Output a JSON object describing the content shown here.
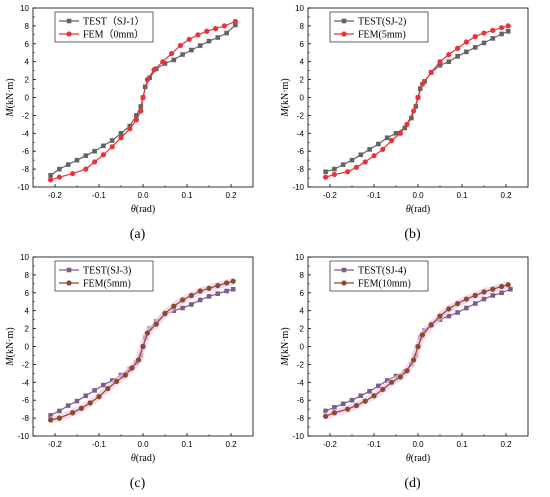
{
  "captions": [
    "(a)",
    "(b)",
    "(c)",
    "(d)"
  ],
  "chart_data": [
    {
      "type": "line",
      "xlabel_var": "θ",
      "xlabel_unit": "(rad)",
      "ylabel_var": "M",
      "ylabel_unit": "(kN·m)",
      "xlim": [
        -0.25,
        0.25
      ],
      "ylim": [
        -10,
        10
      ],
      "xticks": [
        -0.2,
        -0.1,
        0.0,
        0.1,
        0.2
      ],
      "xtick_labels": [
        "-0.2",
        "-0.1",
        "0.0",
        "0.1",
        "0.2"
      ],
      "yticks": [
        -10,
        -8,
        -6,
        -4,
        -2,
        0,
        2,
        4,
        6,
        8,
        10
      ],
      "legend": "top-left",
      "series": [
        {
          "name": "TEST（SJ-1）",
          "color": "#636363",
          "marker": "square",
          "x": [
            -0.21,
            -0.19,
            -0.17,
            -0.15,
            -0.13,
            -0.11,
            -0.09,
            -0.07,
            -0.05,
            -0.03,
            -0.015,
            -0.005,
            0.0,
            0.005,
            0.015,
            0.03,
            0.05,
            0.07,
            0.09,
            0.11,
            0.13,
            0.15,
            0.17,
            0.19,
            0.21
          ],
          "y": [
            -8.7,
            -8.0,
            -7.5,
            -7.0,
            -6.5,
            -6.0,
            -5.4,
            -4.8,
            -4.0,
            -3.2,
            -2.0,
            -1.0,
            0.0,
            1.2,
            2.2,
            3.2,
            3.8,
            4.2,
            4.8,
            5.3,
            5.8,
            6.3,
            6.7,
            7.2,
            8.1
          ]
        },
        {
          "name": "FEM（0mm）",
          "color": "#e8333a",
          "marker": "circle",
          "x": [
            -0.21,
            -0.19,
            -0.16,
            -0.13,
            -0.11,
            -0.09,
            -0.07,
            -0.05,
            -0.03,
            -0.015,
            -0.005,
            0.0,
            0.01,
            0.025,
            0.045,
            0.065,
            0.085,
            0.105,
            0.125,
            0.145,
            0.165,
            0.185,
            0.21
          ],
          "y": [
            -9.2,
            -8.9,
            -8.5,
            -8.0,
            -7.2,
            -6.4,
            -5.5,
            -4.5,
            -3.5,
            -2.5,
            -1.5,
            0.0,
            2.0,
            3.1,
            4.0,
            4.9,
            5.8,
            6.5,
            7.0,
            7.4,
            7.7,
            8.0,
            8.5
          ]
        }
      ]
    },
    {
      "type": "line",
      "xlabel_var": "θ",
      "xlabel_unit": "(rad)",
      "ylabel_var": "M",
      "ylabel_unit": "(kN·m)",
      "xlim": [
        -0.25,
        0.25
      ],
      "ylim": [
        -10,
        10
      ],
      "xticks": [
        -0.2,
        -0.1,
        0.0,
        0.1,
        0.2
      ],
      "xtick_labels": [
        "-0.2",
        "-0.1",
        "0.0",
        "0.1",
        "0.2"
      ],
      "yticks": [
        -10,
        -8,
        -6,
        -4,
        -2,
        0,
        2,
        4,
        6,
        8,
        10
      ],
      "legend": "top-left",
      "series": [
        {
          "name": "TEST(SJ-2)",
          "color": "#636363",
          "marker": "square",
          "x": [
            -0.21,
            -0.19,
            -0.17,
            -0.15,
            -0.13,
            -0.11,
            -0.09,
            -0.07,
            -0.05,
            -0.03,
            -0.015,
            -0.005,
            0.0,
            0.005,
            0.015,
            0.03,
            0.05,
            0.07,
            0.09,
            0.11,
            0.13,
            0.15,
            0.17,
            0.19,
            0.205
          ],
          "y": [
            -8.3,
            -8.0,
            -7.5,
            -7.0,
            -6.4,
            -5.8,
            -5.2,
            -4.5,
            -4.0,
            -3.4,
            -2.3,
            -1.0,
            0.0,
            1.0,
            1.8,
            2.8,
            3.6,
            4.0,
            4.6,
            5.1,
            5.6,
            6.1,
            6.6,
            7.1,
            7.4
          ]
        },
        {
          "name": "FEM(5mm)",
          "color": "#e8333a",
          "marker": "circle",
          "x": [
            -0.21,
            -0.19,
            -0.16,
            -0.14,
            -0.12,
            -0.1,
            -0.08,
            -0.06,
            -0.04,
            -0.025,
            -0.01,
            0.0,
            0.01,
            0.03,
            0.05,
            0.07,
            0.09,
            0.11,
            0.13,
            0.15,
            0.17,
            0.19,
            0.205
          ],
          "y": [
            -8.9,
            -8.6,
            -8.3,
            -7.8,
            -7.2,
            -6.5,
            -5.8,
            -4.8,
            -4.0,
            -3.0,
            -1.5,
            0.0,
            1.5,
            2.8,
            4.0,
            4.8,
            5.5,
            6.2,
            6.8,
            7.2,
            7.5,
            7.8,
            8.0
          ]
        }
      ]
    },
    {
      "type": "line",
      "xlabel_var": "θ",
      "xlabel_unit": "(rad)",
      "ylabel_var": "M",
      "ylabel_unit": "(kN·m)",
      "xlim": [
        -0.25,
        0.25
      ],
      "ylim": [
        -10,
        10
      ],
      "xticks": [
        -0.2,
        -0.1,
        0.0,
        0.1,
        0.2
      ],
      "xtick_labels": [
        "-0.2",
        "-0.1",
        "0.0",
        "0.1",
        "0.2"
      ],
      "yticks": [
        -10,
        -8,
        -6,
        -4,
        -2,
        0,
        2,
        4,
        6,
        8,
        10
      ],
      "legend": "top-left",
      "series": [
        {
          "name": "TEST(SJ-3)",
          "color": "#7a5c8f",
          "marker": "square",
          "x": [
            -0.21,
            -0.19,
            -0.17,
            -0.15,
            -0.13,
            -0.11,
            -0.09,
            -0.07,
            -0.05,
            -0.03,
            -0.015,
            -0.005,
            0.0,
            0.005,
            0.015,
            0.03,
            0.05,
            0.07,
            0.09,
            0.11,
            0.13,
            0.15,
            0.17,
            0.19,
            0.205
          ],
          "y": [
            -7.7,
            -7.2,
            -6.6,
            -6.1,
            -5.5,
            -4.9,
            -4.3,
            -3.8,
            -3.2,
            -2.5,
            -1.8,
            -1.0,
            0.0,
            1.0,
            2.0,
            2.8,
            3.6,
            4.0,
            4.3,
            4.7,
            5.2,
            5.6,
            5.9,
            6.2,
            6.4
          ]
        },
        {
          "name": "FEM(5mm)",
          "color": "#8b4a2b",
          "marker": "circle",
          "x": [
            -0.21,
            -0.19,
            -0.16,
            -0.14,
            -0.12,
            -0.1,
            -0.08,
            -0.06,
            -0.04,
            -0.025,
            -0.01,
            0.0,
            0.01,
            0.03,
            0.05,
            0.07,
            0.09,
            0.11,
            0.13,
            0.15,
            0.17,
            0.19,
            0.205
          ],
          "y": [
            -8.2,
            -8.0,
            -7.4,
            -6.9,
            -6.3,
            -5.6,
            -4.7,
            -3.9,
            -3.2,
            -2.4,
            -1.5,
            0.0,
            1.5,
            2.5,
            3.7,
            4.5,
            5.2,
            5.7,
            6.2,
            6.5,
            6.8,
            7.1,
            7.3
          ]
        }
      ]
    },
    {
      "type": "line",
      "xlabel_var": "θ",
      "xlabel_unit": "(rad)",
      "ylabel_var": "M",
      "ylabel_unit": "(kN·m)",
      "xlim": [
        -0.25,
        0.25
      ],
      "ylim": [
        -10,
        10
      ],
      "xticks": [
        -0.2,
        -0.1,
        0.0,
        0.1,
        0.2
      ],
      "xtick_labels": [
        "-0.2",
        "-0.1",
        "0.0",
        "0.1",
        "0.2"
      ],
      "yticks": [
        -10,
        -8,
        -6,
        -4,
        -2,
        0,
        2,
        4,
        6,
        8,
        10
      ],
      "legend": "top-left",
      "series": [
        {
          "name": "TEST(SJ-4)",
          "color": "#7a5c8f",
          "marker": "square",
          "x": [
            -0.21,
            -0.19,
            -0.17,
            -0.15,
            -0.13,
            -0.11,
            -0.09,
            -0.07,
            -0.05,
            -0.03,
            -0.015,
            -0.005,
            0.0,
            0.005,
            0.015,
            0.03,
            0.05,
            0.07,
            0.09,
            0.11,
            0.13,
            0.15,
            0.17,
            0.19,
            0.21
          ],
          "y": [
            -7.2,
            -6.8,
            -6.4,
            -6.0,
            -5.5,
            -5.0,
            -4.4,
            -3.8,
            -3.3,
            -2.8,
            -2.0,
            -1.0,
            0.0,
            1.0,
            1.8,
            2.5,
            3.0,
            3.4,
            3.8,
            4.3,
            4.8,
            5.3,
            5.7,
            6.0,
            6.4
          ]
        },
        {
          "name": "FEM(10mm)",
          "color": "#8b4a2b",
          "marker": "circle",
          "x": [
            -0.21,
            -0.19,
            -0.16,
            -0.14,
            -0.12,
            -0.1,
            -0.08,
            -0.06,
            -0.04,
            -0.025,
            -0.01,
            0.0,
            0.01,
            0.03,
            0.05,
            0.07,
            0.09,
            0.11,
            0.13,
            0.15,
            0.17,
            0.19,
            0.205
          ],
          "y": [
            -7.8,
            -7.4,
            -7.0,
            -6.6,
            -6.1,
            -5.5,
            -4.8,
            -4.0,
            -3.4,
            -2.7,
            -1.5,
            0.0,
            1.3,
            2.4,
            3.4,
            4.2,
            4.8,
            5.3,
            5.7,
            6.1,
            6.4,
            6.7,
            6.9
          ]
        }
      ]
    }
  ]
}
